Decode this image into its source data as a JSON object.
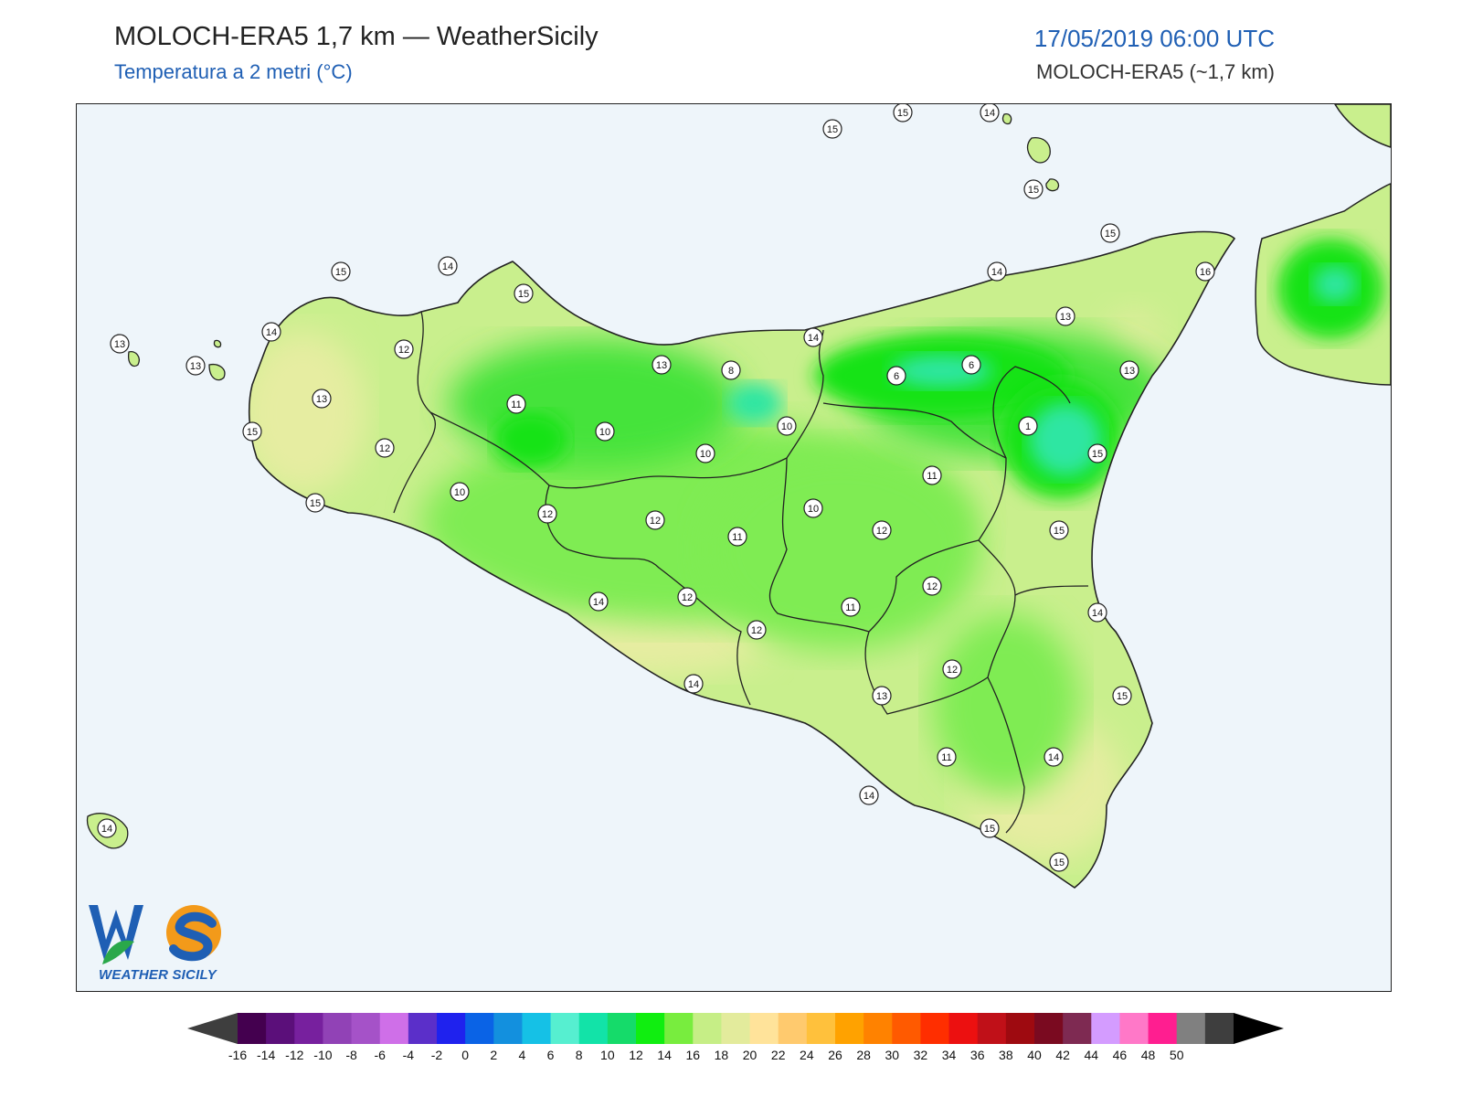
{
  "header": {
    "title": "MOLOCH-ERA5 1,7 km — WeatherSicily",
    "subtitle": "Temperatura a 2 metri (°C)",
    "datetime": "17/05/2019 06:00 UTC",
    "model": "MOLOCH-ERA5 (~1,7 km)"
  },
  "logo": {
    "text": "WEATHER SICILY"
  },
  "colors": {
    "sea": "#eef5fa",
    "base_land": "#c9ef8d",
    "coast_land": "#e6eda1",
    "mid_green": "#7fec52",
    "green": "#44e33a",
    "deep_green": "#19e319",
    "teal": "#2ee6a2",
    "accent_blue": "#1f5fb4"
  },
  "stations": [
    {
      "v": "15"
    },
    {
      "v": "15"
    },
    {
      "v": "14"
    },
    {
      "v": "15"
    },
    {
      "v": "15"
    },
    {
      "v": "16"
    },
    {
      "v": "15"
    },
    {
      "v": "14"
    },
    {
      "v": "15"
    },
    {
      "v": "14"
    },
    {
      "v": "14"
    },
    {
      "v": "13"
    },
    {
      "v": "12"
    },
    {
      "v": "13"
    },
    {
      "v": "13"
    },
    {
      "v": "12"
    },
    {
      "v": "15"
    },
    {
      "v": "15"
    },
    {
      "v": "13"
    },
    {
      "v": "11"
    },
    {
      "v": "10"
    },
    {
      "v": "8"
    },
    {
      "v": "10"
    },
    {
      "v": "10"
    },
    {
      "v": "10"
    },
    {
      "v": "12"
    },
    {
      "v": "14"
    },
    {
      "v": "6"
    },
    {
      "v": "6"
    },
    {
      "v": "13"
    },
    {
      "v": "1"
    },
    {
      "v": "13"
    },
    {
      "v": "15"
    },
    {
      "v": "11"
    },
    {
      "v": "10"
    },
    {
      "v": "12"
    },
    {
      "v": "11"
    },
    {
      "v": "15"
    },
    {
      "v": "12"
    },
    {
      "v": "12"
    },
    {
      "v": "11"
    },
    {
      "v": "14"
    },
    {
      "v": "12"
    },
    {
      "v": "14"
    },
    {
      "v": "14"
    },
    {
      "v": "13"
    },
    {
      "v": "12"
    },
    {
      "v": "12"
    },
    {
      "v": "15"
    },
    {
      "v": "11"
    },
    {
      "v": "14"
    },
    {
      "v": "14"
    },
    {
      "v": "15"
    },
    {
      "v": "15"
    },
    {
      "v": "14"
    }
  ],
  "legend": {
    "labels": [
      "-16",
      "-14",
      "-12",
      "-10",
      "-8",
      "-6",
      "-4",
      "-2",
      "0",
      "2",
      "4",
      "6",
      "8",
      "10",
      "12",
      "14",
      "16",
      "18",
      "20",
      "22",
      "24",
      "26",
      "28",
      "30",
      "32",
      "34",
      "36",
      "38",
      "40",
      "42",
      "44",
      "46",
      "48",
      "50"
    ],
    "colors": [
      "#44004f",
      "#5b0f7a",
      "#77209e",
      "#9142b6",
      "#a552c8",
      "#cf6fe8",
      "#5b2fc9",
      "#1f22ee",
      "#0a63e6",
      "#1390de",
      "#15c1e6",
      "#56efd0",
      "#12e3a8",
      "#15db6a",
      "#10ee10",
      "#78ed3e",
      "#c6ee86",
      "#e3eb9c",
      "#ffe39a",
      "#ffca6e",
      "#ffc13c",
      "#ffa200",
      "#ff8200",
      "#ff5a00",
      "#ff2e00",
      "#ec1010",
      "#c01018",
      "#9e0a10",
      "#7a0a20",
      "#7e2a52",
      "#d49cff",
      "#ff78c8",
      "#ff1e90",
      "#808080",
      "#3e3e3e"
    ],
    "under_color": "#3e3e3e",
    "over_color": "#000000"
  }
}
